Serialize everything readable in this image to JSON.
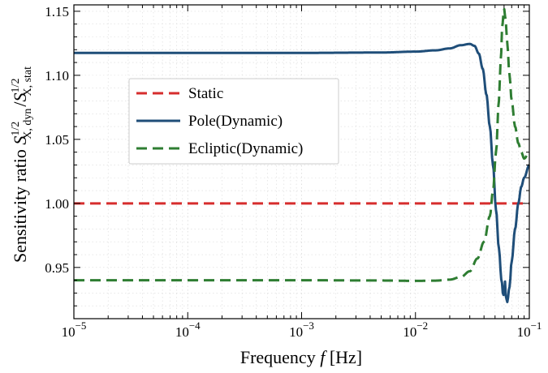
{
  "chart_data": {
    "type": "line",
    "xscale": "log",
    "xlim": [
      1e-05,
      0.1
    ],
    "ylim": [
      0.91,
      1.155
    ],
    "xlabel_prefix": "Frequency ",
    "xlabel_var": "f",
    "xlabel_unit": " [Hz]",
    "ylabel_prefix": "Sensitivity ratio ",
    "ylabel_num_base": "S",
    "ylabel_num_sup": "1/2",
    "ylabel_num_sub": "X, dyn",
    "ylabel_slash": "/",
    "ylabel_den_base": "S",
    "ylabel_den_sup": "1/2",
    "ylabel_den_sub": "X, stat",
    "x_ticks": [
      {
        "value": 1e-05,
        "base": "10",
        "exp": "−5"
      },
      {
        "value": 0.0001,
        "base": "10",
        "exp": "−4"
      },
      {
        "value": 0.001,
        "base": "10",
        "exp": "−3"
      },
      {
        "value": 0.01,
        "base": "10",
        "exp": "−2"
      },
      {
        "value": 0.1,
        "base": "10",
        "exp": "−1"
      }
    ],
    "y_ticks": [
      {
        "value": 0.95,
        "label": "0.95"
      },
      {
        "value": 1.0,
        "label": "1.00"
      },
      {
        "value": 1.05,
        "label": "1.05"
      },
      {
        "value": 1.1,
        "label": "1.10"
      },
      {
        "value": 1.15,
        "label": "1.15"
      }
    ],
    "grid": true,
    "legend_position": "upper-left",
    "series": [
      {
        "name": "Static",
        "color": "#d62d2d",
        "style": "dashed",
        "x": [
          1e-05,
          0.1
        ],
        "y": [
          1.0,
          1.0
        ]
      },
      {
        "name": "Pole(Dynamic)",
        "color": "#1f4e79",
        "style": "solid",
        "x": [
          1e-05,
          0.0001,
          0.001,
          0.005,
          0.01,
          0.015,
          0.02,
          0.025,
          0.03,
          0.033,
          0.036,
          0.039,
          0.042,
          0.045,
          0.048,
          0.051,
          0.054,
          0.057,
          0.059,
          0.06,
          0.061,
          0.062,
          0.064,
          0.067,
          0.07,
          0.075,
          0.08,
          0.085,
          0.09,
          0.1
        ],
        "y": [
          1.1175,
          1.1175,
          1.1175,
          1.1178,
          1.1185,
          1.1195,
          1.121,
          1.1235,
          1.1245,
          1.123,
          1.117,
          1.105,
          1.085,
          1.06,
          1.03,
          0.995,
          0.965,
          0.94,
          0.928,
          0.93,
          0.94,
          0.928,
          0.923,
          0.935,
          0.955,
          0.98,
          1.0,
          1.013,
          1.02,
          1.03
        ]
      },
      {
        "name": "Ecliptic(Dynamic)",
        "color": "#2e7d32",
        "style": "dashed",
        "x": [
          1e-05,
          0.0001,
          0.001,
          0.005,
          0.01,
          0.015,
          0.02,
          0.025,
          0.03,
          0.035,
          0.04,
          0.045,
          0.048,
          0.051,
          0.054,
          0.056,
          0.058,
          0.06,
          0.062,
          0.064,
          0.067,
          0.07,
          0.075,
          0.08,
          0.085,
          0.09,
          0.1
        ],
        "y": [
          0.94,
          0.94,
          0.94,
          0.9398,
          0.9395,
          0.9397,
          0.9405,
          0.9425,
          0.947,
          0.957,
          0.97,
          0.99,
          1.01,
          1.04,
          1.08,
          1.11,
          1.14,
          1.152,
          1.143,
          1.125,
          1.1,
          1.08,
          1.06,
          1.047,
          1.04,
          1.035,
          1.04
        ]
      }
    ]
  }
}
